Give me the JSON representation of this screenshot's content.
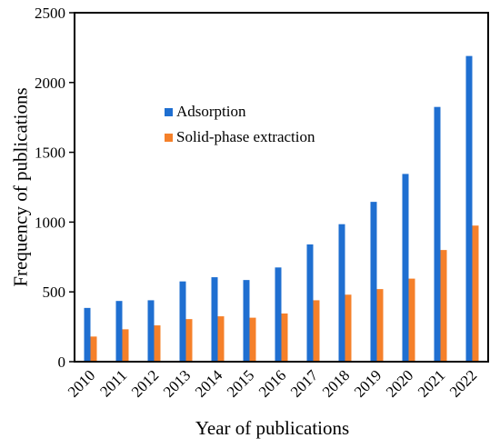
{
  "chart_data": {
    "type": "bar",
    "title": "",
    "xlabel": "Year of publications",
    "ylabel": "Frequency of publications",
    "categories": [
      "2010",
      "2011",
      "2012",
      "2013",
      "2014",
      "2015",
      "2016",
      "2017",
      "2018",
      "2019",
      "2020",
      "2021",
      "2022"
    ],
    "ylim": [
      0,
      2500
    ],
    "yticks": [
      "0",
      "500",
      "1000",
      "1500",
      "2000",
      "2500"
    ],
    "grid": false,
    "legend_position": "upper-left-inside",
    "series": [
      {
        "name": "Adsorption",
        "color": "#1f6fd1",
        "values": [
          385,
          435,
          440,
          575,
          605,
          585,
          675,
          840,
          985,
          1145,
          1345,
          1825,
          2190
        ]
      },
      {
        "name": "Solid-phase extraction",
        "color": "#f5802a",
        "values": [
          180,
          232,
          260,
          305,
          325,
          315,
          345,
          440,
          480,
          520,
          595,
          800,
          975
        ]
      }
    ]
  }
}
